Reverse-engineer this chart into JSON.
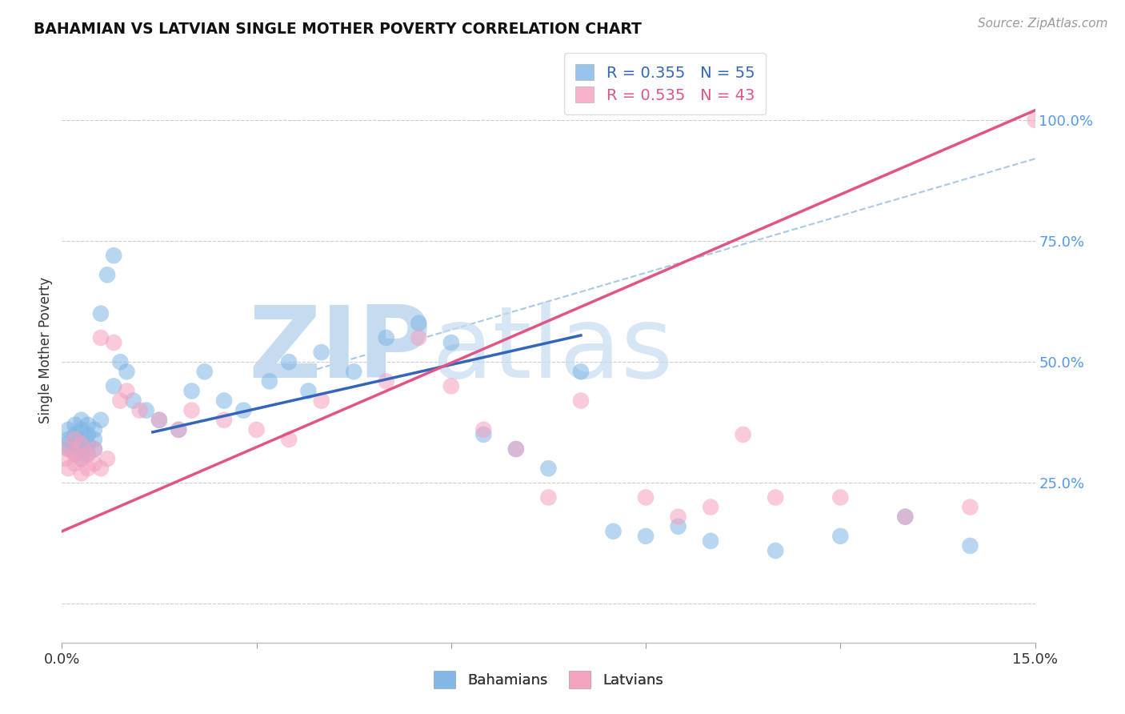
{
  "title": "BAHAMIAN VS LATVIAN SINGLE MOTHER POVERTY CORRELATION CHART",
  "source": "Source: ZipAtlas.com",
  "ylabel": "Single Mother Poverty",
  "xlim": [
    0.0,
    0.15
  ],
  "ylim": [
    -0.08,
    1.13
  ],
  "yticks": [
    0.0,
    0.25,
    0.5,
    0.75,
    1.0
  ],
  "ytick_labels": [
    "",
    "25.0%",
    "50.0%",
    "75.0%",
    "100.0%"
  ],
  "xticks": [
    0.0,
    0.03,
    0.06,
    0.09,
    0.12,
    0.15
  ],
  "xtick_labels": [
    "0.0%",
    "",
    "",
    "",
    "",
    "15.0%"
  ],
  "blue_R": 0.355,
  "blue_N": 55,
  "pink_R": 0.535,
  "pink_N": 43,
  "blue_color": "#7EB5E5",
  "pink_color": "#F4A0BE",
  "blue_line_color": "#3366BB",
  "pink_line_color": "#E05585",
  "dashed_line_color": "#A8C8E8",
  "watermark_zip_color": "#C5DCF0",
  "watermark_atlas_color": "#C5DCF0",
  "bg_color": "#FFFFFF",
  "grid_color": "#CCCCCC",
  "blue_scatter_x": [
    0.0005,
    0.001,
    0.001,
    0.001,
    0.002,
    0.002,
    0.002,
    0.002,
    0.003,
    0.003,
    0.003,
    0.003,
    0.003,
    0.004,
    0.004,
    0.004,
    0.004,
    0.005,
    0.005,
    0.005,
    0.006,
    0.006,
    0.007,
    0.008,
    0.008,
    0.009,
    0.01,
    0.011,
    0.013,
    0.015,
    0.018,
    0.02,
    0.022,
    0.025,
    0.028,
    0.032,
    0.035,
    0.038,
    0.04,
    0.045,
    0.05,
    0.055,
    0.06,
    0.065,
    0.07,
    0.075,
    0.08,
    0.085,
    0.09,
    0.095,
    0.1,
    0.11,
    0.12,
    0.13,
    0.14
  ],
  "blue_scatter_y": [
    0.33,
    0.32,
    0.34,
    0.36,
    0.31,
    0.33,
    0.35,
    0.37,
    0.3,
    0.32,
    0.34,
    0.36,
    0.38,
    0.31,
    0.33,
    0.35,
    0.37,
    0.32,
    0.34,
    0.36,
    0.38,
    0.6,
    0.68,
    0.45,
    0.72,
    0.5,
    0.48,
    0.42,
    0.4,
    0.38,
    0.36,
    0.44,
    0.48,
    0.42,
    0.4,
    0.46,
    0.5,
    0.44,
    0.52,
    0.48,
    0.55,
    0.58,
    0.54,
    0.35,
    0.32,
    0.28,
    0.48,
    0.15,
    0.14,
    0.16,
    0.13,
    0.11,
    0.14,
    0.18,
    0.12
  ],
  "pink_scatter_x": [
    0.0005,
    0.001,
    0.001,
    0.002,
    0.002,
    0.002,
    0.003,
    0.003,
    0.003,
    0.004,
    0.004,
    0.005,
    0.005,
    0.006,
    0.006,
    0.007,
    0.008,
    0.009,
    0.01,
    0.012,
    0.015,
    0.018,
    0.02,
    0.025,
    0.03,
    0.035,
    0.04,
    0.05,
    0.055,
    0.06,
    0.065,
    0.07,
    0.075,
    0.08,
    0.09,
    0.095,
    0.1,
    0.105,
    0.11,
    0.12,
    0.13,
    0.14,
    0.15
  ],
  "pink_scatter_y": [
    0.3,
    0.28,
    0.32,
    0.29,
    0.31,
    0.34,
    0.27,
    0.3,
    0.33,
    0.28,
    0.31,
    0.29,
    0.32,
    0.55,
    0.28,
    0.3,
    0.54,
    0.42,
    0.44,
    0.4,
    0.38,
    0.36,
    0.4,
    0.38,
    0.36,
    0.34,
    0.42,
    0.46,
    0.55,
    0.45,
    0.36,
    0.32,
    0.22,
    0.42,
    0.22,
    0.18,
    0.2,
    0.35,
    0.22,
    0.22,
    0.18,
    0.2,
    1.0
  ],
  "blue_line_x": [
    0.014,
    0.08
  ],
  "blue_line_y": [
    0.355,
    0.555
  ],
  "pink_line_x": [
    0.0,
    0.15
  ],
  "pink_line_y": [
    0.15,
    1.02
  ],
  "dashed_line_x": [
    0.038,
    0.15
  ],
  "dashed_line_y": [
    0.48,
    0.92
  ]
}
